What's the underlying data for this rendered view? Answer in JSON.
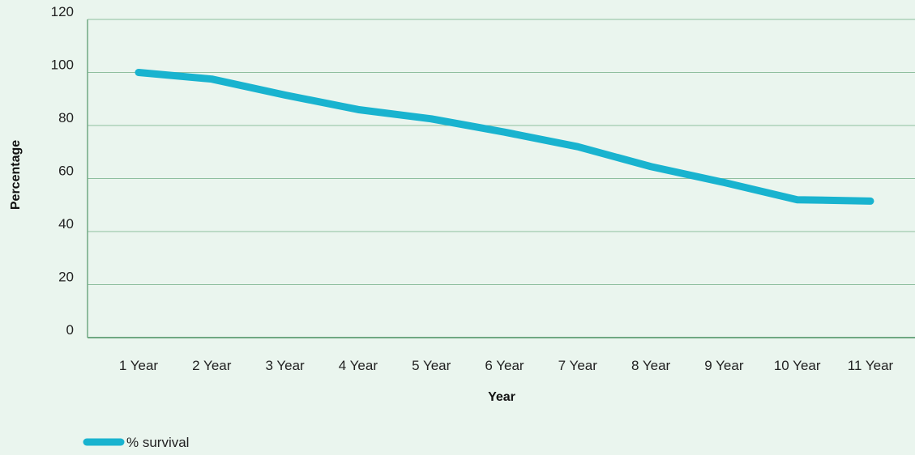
{
  "chart_data": {
    "type": "line",
    "title": "",
    "xlabel": "Year",
    "ylabel": "Percentage",
    "categories": [
      "1 Year",
      "2 Year",
      "3 Year",
      "4 Year",
      "5 Year",
      "6 Year",
      "7 Year",
      "8 Year",
      "9 Year",
      "10 Year",
      "11 Year"
    ],
    "series": [
      {
        "name": "% survival",
        "values": [
          100,
          97.5,
          91.5,
          86,
          82.5,
          77.5,
          72,
          64.5,
          58.5,
          52,
          51.5
        ],
        "color": "#19b3cf"
      }
    ],
    "ylim": [
      0,
      120
    ],
    "yticks": [
      0,
      20,
      40,
      60,
      80,
      100,
      120
    ],
    "grid": true,
    "legend_position": "bottom-left"
  },
  "colors": {
    "background": "#eaf5ee",
    "gridline": "#8fbf9f",
    "axis": "#6fa882"
  }
}
